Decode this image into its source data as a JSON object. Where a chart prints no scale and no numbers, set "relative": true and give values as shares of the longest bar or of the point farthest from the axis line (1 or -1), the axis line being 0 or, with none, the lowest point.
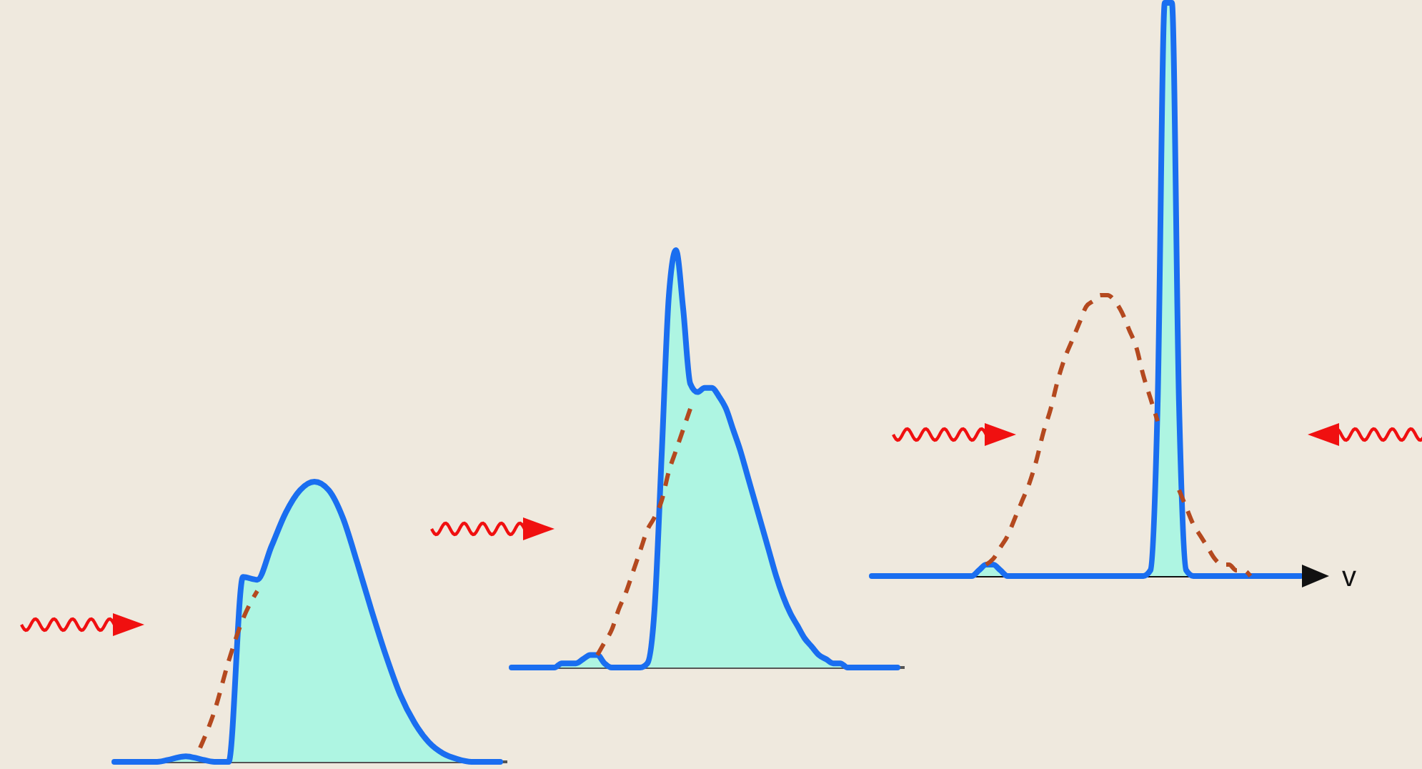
{
  "chart_data": [
    {
      "type": "area",
      "relative": true,
      "categories": [
        null,
        null,
        null,
        null,
        null,
        null,
        null,
        null,
        null,
        null,
        null,
        null,
        null,
        null,
        null,
        null,
        null,
        null,
        null,
        null,
        null,
        null,
        null,
        null,
        null,
        null,
        null,
        null
      ],
      "series": [
        {
          "color": "#1a6ef0",
          "values": [
            0,
            0,
            0,
            0,
            0.01,
            0.02,
            0.01,
            0,
            0,
            0.66,
            0.65,
            0.77,
            0.89,
            0.97,
            1,
            0.97,
            0.87,
            0.71,
            0.54,
            0.38,
            0.24,
            0.14,
            0.07,
            0.03,
            0.01,
            0,
            0,
            0
          ]
        },
        {
          "type": "line",
          "line_style": "dashed",
          "color": "#b4491f",
          "values": [
            null,
            null,
            null,
            null,
            null,
            null,
            0.05,
            0.18,
            0.36,
            0.51,
            0.61,
            null,
            null,
            null,
            null,
            null,
            null,
            null,
            null,
            null,
            null,
            null,
            null,
            null,
            null,
            null,
            null,
            null
          ]
        }
      ]
    },
    {
      "type": "area",
      "relative": true,
      "categories": [
        null,
        null,
        null,
        null,
        null,
        null,
        null,
        null,
        null,
        null,
        null,
        null,
        null,
        null,
        null,
        null,
        null,
        null,
        null,
        null,
        null,
        null,
        null,
        null,
        null,
        null,
        null,
        null,
        null,
        null,
        null,
        null,
        null,
        null,
        null,
        null,
        null,
        null,
        null,
        null,
        null,
        null,
        null,
        null,
        null,
        null,
        null,
        null,
        null,
        null,
        null,
        null,
        null,
        null,
        null
      ],
      "series": [
        {
          "color": "#1a6ef0",
          "values": [
            0,
            0,
            0,
            0,
            0,
            0,
            0,
            0.01,
            0.01,
            0.01,
            0.02,
            0.03,
            0.03,
            0.01,
            0,
            0,
            0,
            0,
            0,
            0.01,
            0.14,
            0.51,
            0.89,
            1,
            0.86,
            0.68,
            0.66,
            0.67,
            0.67,
            0.65,
            0.62,
            0.57,
            0.52,
            0.46,
            0.4,
            0.34,
            0.28,
            0.22,
            0.17,
            0.13,
            0.1,
            0.07,
            0.05,
            0.03,
            0.02,
            0.01,
            0.01,
            0,
            0,
            0,
            0,
            0,
            0,
            0,
            0
          ]
        },
        {
          "type": "line",
          "line_style": "dashed",
          "color": "#b4491f",
          "values": [
            null,
            null,
            null,
            null,
            null,
            null,
            null,
            null,
            null,
            null,
            null,
            null,
            0.03,
            0.06,
            0.09,
            0.14,
            0.18,
            0.23,
            0.28,
            0.33,
            0.36,
            0.4,
            0.47,
            0.52,
            0.57,
            0.62,
            null,
            null,
            null,
            null,
            null,
            null,
            null,
            null,
            null,
            null,
            null,
            null,
            null,
            null,
            null,
            null,
            null,
            null,
            null,
            null,
            null,
            null,
            null,
            null,
            null,
            null,
            null,
            null,
            null
          ]
        }
      ]
    },
    {
      "type": "area",
      "relative": true,
      "xlabel": "v",
      "categories": [
        null,
        null,
        null,
        null,
        null,
        null,
        null,
        null,
        null,
        null,
        null,
        null,
        null,
        null,
        null,
        null,
        null,
        null,
        null,
        null,
        null,
        null,
        null,
        null,
        null,
        null,
        null,
        null,
        null,
        null,
        null,
        null,
        null,
        null,
        null,
        null,
        null,
        null,
        null,
        null,
        null,
        null,
        null,
        null,
        null,
        null,
        null,
        null,
        null,
        null,
        null,
        null,
        null,
        null,
        null,
        null,
        null,
        null,
        null,
        null,
        null
      ],
      "series": [
        {
          "color": "#1a6ef0",
          "values": [
            0,
            0,
            0,
            0,
            0,
            0,
            0,
            0,
            0,
            0,
            0,
            0,
            0,
            0,
            0,
            0.01,
            0.02,
            0.02,
            0.01,
            0,
            0,
            0,
            0,
            0,
            0,
            0,
            0,
            0,
            0,
            0,
            0,
            0,
            0,
            0,
            0,
            0,
            0,
            0,
            0,
            0.01,
            0.3,
            1,
            1,
            0.3,
            0.01,
            0,
            0,
            0,
            0,
            0,
            0,
            0,
            0,
            0,
            0,
            0,
            0,
            0,
            0,
            0,
            0
          ]
        },
        {
          "type": "line",
          "line_style": "dashed",
          "color": "#b4491f",
          "values": [
            null,
            null,
            null,
            null,
            null,
            null,
            null,
            null,
            null,
            null,
            null,
            null,
            null,
            null,
            null,
            null,
            0.02,
            0.03,
            0.05,
            0.07,
            0.1,
            0.13,
            0.16,
            0.2,
            0.25,
            0.29,
            0.34,
            0.38,
            0.41,
            0.44,
            0.47,
            0.48,
            0.49,
            0.49,
            0.48,
            0.46,
            0.43,
            0.4,
            0.35,
            0.31,
            0.27,
            null,
            null,
            0.15,
            0.12,
            0.09,
            0.07,
            0.05,
            0.03,
            0.02,
            0.02,
            0.01,
            0.01,
            0,
            null,
            null,
            null,
            null,
            null,
            null,
            null
          ]
        }
      ]
    }
  ]
}
